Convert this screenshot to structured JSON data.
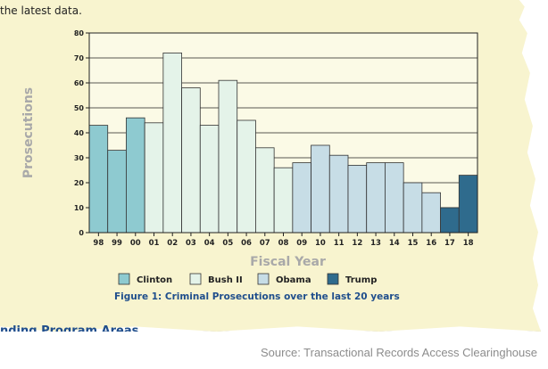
{
  "intro_text": "the latest data.",
  "section_heading_fragment": "nding Program Areas",
  "source_text": "Source: Transactional Records Access Clearinghouse",
  "colors": {
    "panel_background": "#f8f4cf",
    "plot_background": "#fbfae6",
    "clinton": "#8ecad0",
    "bush": "#e4f3e9",
    "obama": "#c7dde6",
    "trump": "#2f6b8d",
    "caption": "#1f4e8c"
  },
  "chart_data": {
    "type": "bar",
    "title": "",
    "caption": "Figure 1: Criminal Prosecutions over the last 20 years",
    "xlabel": "Fiscal Year",
    "ylabel": "Prosecutions",
    "ylim": [
      0,
      80
    ],
    "yticks": [
      0,
      10,
      20,
      30,
      40,
      50,
      60,
      70,
      80
    ],
    "grid": true,
    "legend_position": "bottom",
    "categories": [
      "98",
      "99",
      "00",
      "01",
      "02",
      "03",
      "04",
      "05",
      "06",
      "07",
      "08",
      "09",
      "10",
      "11",
      "12",
      "13",
      "14",
      "15",
      "16",
      "17",
      "18"
    ],
    "values": [
      43,
      33,
      46,
      44,
      72,
      58,
      43,
      61,
      45,
      34,
      26,
      28,
      35,
      31,
      27,
      28,
      28,
      20,
      16,
      10,
      23
    ],
    "groups": [
      "Clinton",
      "Clinton",
      "Clinton",
      "Bush II",
      "Bush II",
      "Bush II",
      "Bush II",
      "Bush II",
      "Bush II",
      "Bush II",
      "Bush II",
      "Obama",
      "Obama",
      "Obama",
      "Obama",
      "Obama",
      "Obama",
      "Obama",
      "Obama",
      "Trump",
      "Trump"
    ],
    "legend": [
      {
        "label": "Clinton",
        "color": "#8ecad0"
      },
      {
        "label": "Bush II",
        "color": "#e4f3e9"
      },
      {
        "label": "Obama",
        "color": "#c7dde6"
      },
      {
        "label": "Trump",
        "color": "#2f6b8d"
      }
    ]
  }
}
